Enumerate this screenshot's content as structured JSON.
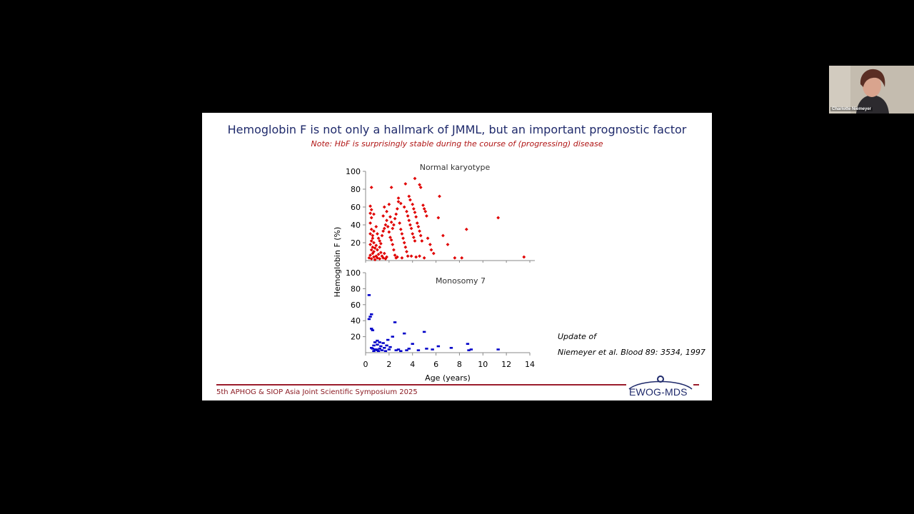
{
  "participant": {
    "name": "Charlotte Niemeyer"
  },
  "slide": {
    "title": "Hemoglobin F is not only a hallmark of JMML, but an important prognostic factor",
    "note": "Note: HbF is surprisingly stable during the course of (progressing) disease",
    "citation_line1": "Update of",
    "citation_line2": "Niemeyer et al. Blood 89: 3534, 1997",
    "footer": "5th APHOG & SIOP Asia Joint Scientific Symposium 2025",
    "logo": "EWOG-MDS"
  },
  "chart_data": [
    {
      "type": "scatter",
      "title": "Normal karyotype",
      "ylabel": "Hemoglobin F (%)",
      "xlabel": "",
      "xlim": [
        0,
        14
      ],
      "ylim": [
        0,
        100
      ],
      "yticks": [
        "20",
        "40",
        "60",
        "80",
        "100"
      ],
      "color": "#e00000",
      "points": [
        [
          0.3,
          3
        ],
        [
          0.4,
          6
        ],
        [
          0.5,
          2
        ],
        [
          0.6,
          8
        ],
        [
          0.7,
          4
        ],
        [
          0.8,
          1
        ],
        [
          0.5,
          12
        ],
        [
          0.6,
          15
        ],
        [
          0.7,
          10
        ],
        [
          0.8,
          14
        ],
        [
          0.9,
          5
        ],
        [
          1.0,
          3
        ],
        [
          1.1,
          7
        ],
        [
          1.2,
          2
        ],
        [
          1.3,
          9
        ],
        [
          0.4,
          18
        ],
        [
          0.5,
          22
        ],
        [
          0.6,
          25
        ],
        [
          0.7,
          20
        ],
        [
          0.9,
          17
        ],
        [
          1.0,
          12
        ],
        [
          1.2,
          15
        ],
        [
          1.4,
          5
        ],
        [
          1.5,
          3
        ],
        [
          1.6,
          8
        ],
        [
          1.7,
          2
        ],
        [
          1.8,
          4
        ],
        [
          0.4,
          30
        ],
        [
          0.5,
          35
        ],
        [
          0.6,
          28
        ],
        [
          0.7,
          33
        ],
        [
          0.4,
          42
        ],
        [
          0.5,
          48
        ],
        [
          0.4,
          53
        ],
        [
          0.5,
          57
        ],
        [
          0.4,
          61
        ],
        [
          0.5,
          82
        ],
        [
          0.7,
          52
        ],
        [
          0.9,
          38
        ],
        [
          1.0,
          30
        ],
        [
          1.1,
          25
        ],
        [
          1.2,
          22
        ],
        [
          1.3,
          19
        ],
        [
          1.4,
          28
        ],
        [
          1.5,
          33
        ],
        [
          1.6,
          36
        ],
        [
          1.7,
          40
        ],
        [
          1.8,
          45
        ],
        [
          1.9,
          38
        ],
        [
          2.0,
          32
        ],
        [
          2.1,
          26
        ],
        [
          2.2,
          23
        ],
        [
          2.3,
          18
        ],
        [
          2.4,
          12
        ],
        [
          2.5,
          6
        ],
        [
          2.6,
          3
        ],
        [
          1.5,
          50
        ],
        [
          1.6,
          60
        ],
        [
          1.8,
          55
        ],
        [
          2.0,
          63
        ],
        [
          2.1,
          49
        ],
        [
          2.2,
          43
        ],
        [
          2.3,
          36
        ],
        [
          2.4,
          40
        ],
        [
          2.5,
          47
        ],
        [
          2.6,
          52
        ],
        [
          2.7,
          58
        ],
        [
          2.8,
          66
        ],
        [
          2.9,
          42
        ],
        [
          3.0,
          35
        ],
        [
          3.1,
          30
        ],
        [
          3.2,
          25
        ],
        [
          3.3,
          20
        ],
        [
          3.4,
          15
        ],
        [
          3.5,
          10
        ],
        [
          3.6,
          5
        ],
        [
          2.2,
          82
        ],
        [
          2.8,
          70
        ],
        [
          3.0,
          64
        ],
        [
          3.3,
          60
        ],
        [
          3.5,
          55
        ],
        [
          3.6,
          50
        ],
        [
          3.7,
          45
        ],
        [
          3.8,
          40
        ],
        [
          3.9,
          36
        ],
        [
          4.0,
          30
        ],
        [
          4.1,
          26
        ],
        [
          4.2,
          22
        ],
        [
          3.4,
          86
        ],
        [
          3.7,
          72
        ],
        [
          3.8,
          68
        ],
        [
          4.0,
          63
        ],
        [
          4.1,
          58
        ],
        [
          4.2,
          54
        ],
        [
          4.3,
          49
        ],
        [
          4.4,
          42
        ],
        [
          4.5,
          38
        ],
        [
          4.6,
          33
        ],
        [
          4.7,
          28
        ],
        [
          4.8,
          22
        ],
        [
          4.2,
          92
        ],
        [
          4.6,
          85
        ],
        [
          4.7,
          82
        ],
        [
          4.9,
          62
        ],
        [
          5.0,
          58
        ],
        [
          5.1,
          55
        ],
        [
          5.2,
          50
        ],
        [
          5.3,
          25
        ],
        [
          5.5,
          18
        ],
        [
          5.6,
          12
        ],
        [
          5.8,
          8
        ],
        [
          4.3,
          4
        ],
        [
          4.6,
          5
        ],
        [
          5.0,
          3
        ],
        [
          6.3,
          72
        ],
        [
          6.2,
          48
        ],
        [
          6.6,
          28
        ],
        [
          7.0,
          18
        ],
        [
          7.6,
          3
        ],
        [
          8.2,
          3
        ],
        [
          8.6,
          35
        ],
        [
          11.3,
          48
        ],
        [
          13.5,
          4
        ],
        [
          2.7,
          4
        ],
        [
          3.1,
          3
        ],
        [
          3.9,
          5
        ]
      ]
    },
    {
      "type": "scatter",
      "title": "Monosomy 7",
      "ylabel": "Hemoglobin F (%)",
      "xlabel": "Age (years)",
      "xlim": [
        0,
        14
      ],
      "ylim": [
        0,
        100
      ],
      "xticks": [
        "0",
        "2",
        "4",
        "6",
        "8",
        "10",
        "12",
        "14"
      ],
      "yticks": [
        "20",
        "40",
        "60",
        "80",
        "100"
      ],
      "color": "#0000c8",
      "points": [
        [
          0.3,
          72
        ],
        [
          0.3,
          42
        ],
        [
          0.4,
          45
        ],
        [
          0.5,
          48
        ],
        [
          0.5,
          30
        ],
        [
          0.6,
          28
        ],
        [
          0.6,
          5
        ],
        [
          0.7,
          2
        ],
        [
          0.7,
          9
        ],
        [
          0.8,
          13
        ],
        [
          0.9,
          4
        ],
        [
          1.0,
          10
        ],
        [
          1.0,
          15
        ],
        [
          1.1,
          2
        ],
        [
          1.2,
          5
        ],
        [
          1.3,
          8
        ],
        [
          1.4,
          3
        ],
        [
          1.5,
          12
        ],
        [
          1.6,
          6
        ],
        [
          1.7,
          2
        ],
        [
          1.8,
          9
        ],
        [
          1.9,
          16
        ],
        [
          2.0,
          4
        ],
        [
          2.1,
          7
        ],
        [
          2.3,
          20
        ],
        [
          2.5,
          38
        ],
        [
          2.6,
          3
        ],
        [
          2.8,
          4
        ],
        [
          3.0,
          2
        ],
        [
          3.3,
          24
        ],
        [
          3.5,
          3
        ],
        [
          3.7,
          5
        ],
        [
          4.0,
          11
        ],
        [
          4.5,
          3
        ],
        [
          5.0,
          26
        ],
        [
          5.2,
          5
        ],
        [
          5.7,
          4
        ],
        [
          6.2,
          8
        ],
        [
          7.3,
          6
        ],
        [
          8.7,
          11
        ],
        [
          8.8,
          3
        ],
        [
          9.0,
          4
        ],
        [
          11.3,
          4
        ],
        [
          0.5,
          6
        ],
        [
          0.8,
          4
        ],
        [
          1.2,
          13
        ],
        [
          1.0,
          3
        ]
      ]
    }
  ]
}
